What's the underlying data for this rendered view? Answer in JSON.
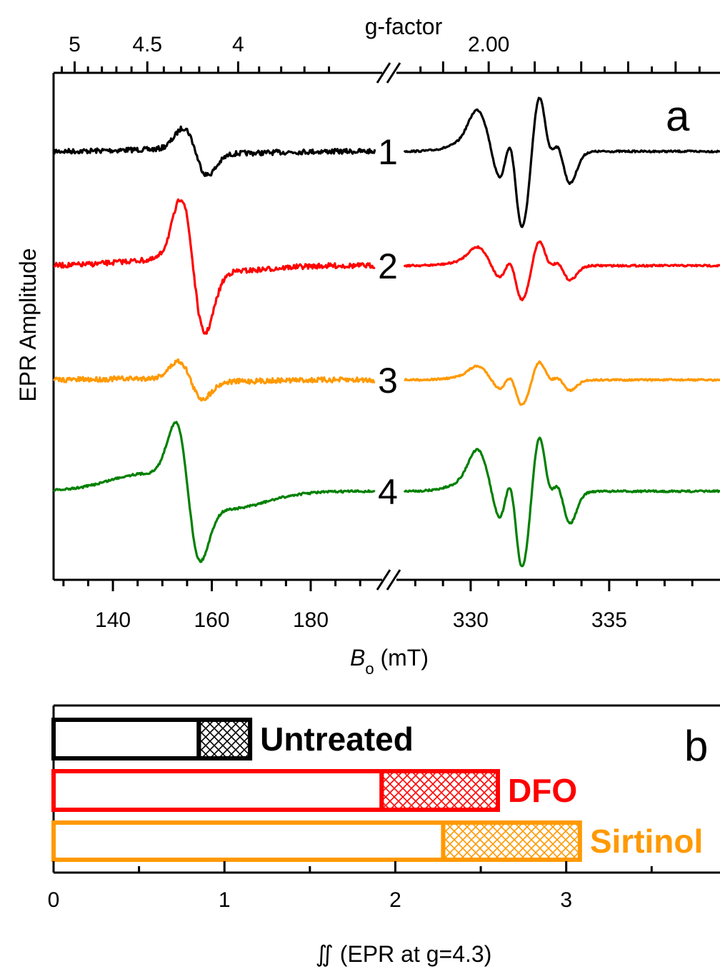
{
  "chart_data": [
    {
      "type": "line",
      "panel": "a",
      "top_axis": {
        "title": "g-factor",
        "left_tick_labels": [
          "5",
          "4.5",
          "4"
        ],
        "right_tick_labels": [
          "2.00"
        ]
      },
      "xlabel_main": "B",
      "xlabel_sub": "o",
      "xlabel_unit": " (mT)",
      "ylabel": "EPR Amplitude",
      "x_segments": [
        {
          "xlim": [
            128,
            193
          ],
          "ticks": [
            140,
            160,
            180
          ]
        },
        {
          "xlim": [
            327.5,
            339
          ],
          "ticks": [
            330,
            335
          ]
        }
      ],
      "series": [
        {
          "label": "1",
          "color": "#000000",
          "peak_low": 154.5,
          "low_peak_amp": 0.35,
          "high_amp": 1.0
        },
        {
          "label": "2",
          "color": "#ff0000",
          "peak_low": 154.0,
          "low_peak_amp": 1.0,
          "high_amp": 0.45
        },
        {
          "label": "3",
          "color": "#ff9900",
          "peak_low": 153.5,
          "low_peak_amp": 0.28,
          "high_amp": 0.33
        },
        {
          "label": "4",
          "color": "#008000",
          "peak_low": 153.0,
          "low_peak_amp": 0.95,
          "high_amp": 1.0
        }
      ]
    },
    {
      "type": "bar",
      "panel": "b",
      "orientation": "horizontal",
      "xlabel": "∬ (EPR at g=4.3)",
      "xlim": [
        0,
        3.9
      ],
      "ticks": [
        0,
        1,
        2,
        3
      ],
      "tick_labels": [
        "0",
        "1",
        "2",
        "3"
      ],
      "bars": [
        {
          "name": "Untreated",
          "color": "#000000",
          "solid": 0.85,
          "total": 1.15
        },
        {
          "name": "DFO",
          "color": "#ff0000",
          "solid": 1.92,
          "total": 2.6
        },
        {
          "name": "Sirtinol",
          "color": "#ff9900",
          "solid": 2.28,
          "total": 3.08
        }
      ]
    }
  ]
}
